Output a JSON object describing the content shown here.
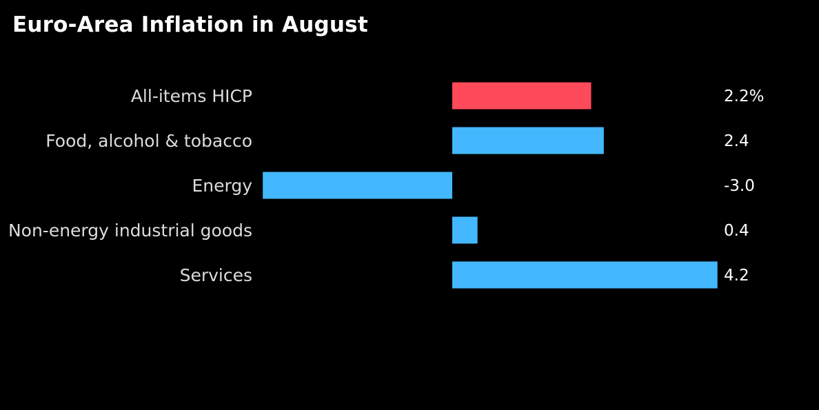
{
  "title": "Euro-Area Inflation in August",
  "colors": {
    "background": "#000000",
    "highlight": "#ff4a59",
    "bar": "#44b8ff"
  },
  "chart_data": {
    "type": "bar",
    "orientation": "horizontal",
    "title": "Euro-Area Inflation in August",
    "categories": [
      "All-items HICP",
      "Food, alcohol & tobacco",
      "Energy",
      "Non-energy industrial goods",
      "Services"
    ],
    "values": [
      2.2,
      2.4,
      -3.0,
      0.4,
      4.2
    ],
    "value_labels": [
      "2.2%",
      "2.4",
      "-3.0",
      "0.4",
      "4.2"
    ],
    "highlight": [
      "All-items HICP"
    ],
    "xlim": [
      -3.0,
      4.2
    ]
  }
}
